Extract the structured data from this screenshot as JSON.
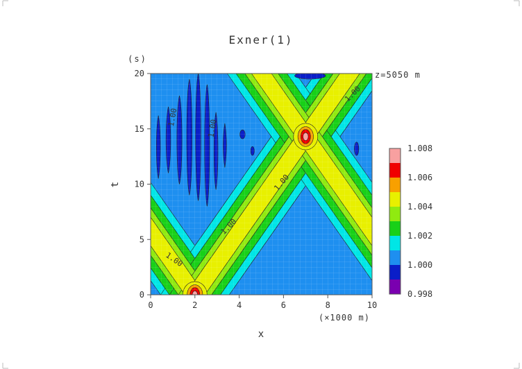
{
  "chart_data": {
    "type": "heatmap",
    "title": "Exner(1)",
    "xlabel": "x",
    "xunit": "(×1000 m)",
    "ylabel": "t",
    "yunit": "(s)",
    "annotation": "z=5050 m",
    "xlim": [
      0,
      10
    ],
    "ylim": [
      0,
      20
    ],
    "xticks": [
      "0",
      "2",
      "4",
      "6",
      "8",
      "10"
    ],
    "yticks": [
      "0",
      "5",
      "10",
      "15",
      "20"
    ],
    "contour_labels": [
      "1.00",
      "1.00",
      "1.00",
      "1.00",
      "1.00",
      "1.00"
    ],
    "colorbar": {
      "ticks": [
        "0.998",
        "1.000",
        "1.002",
        "1.004",
        "1.006",
        "1.008"
      ],
      "levels": [
        0.998,
        0.999,
        1.0,
        1.001,
        1.002,
        1.003,
        1.004,
        1.005,
        1.006,
        1.007,
        1.008
      ],
      "colors": [
        "#7a00b0",
        "#0a1ec8",
        "#1e8ff0",
        "#00e6e6",
        "#18d018",
        "#90ea10",
        "#e8f000",
        "#f8a000",
        "#f00000",
        "#f8a0a0"
      ]
    },
    "features": [
      {
        "x": 2.0,
        "t": 0.0,
        "max": 1.0075
      },
      {
        "x": 7.0,
        "t": 14.3,
        "max": 1.0075
      }
    ]
  }
}
